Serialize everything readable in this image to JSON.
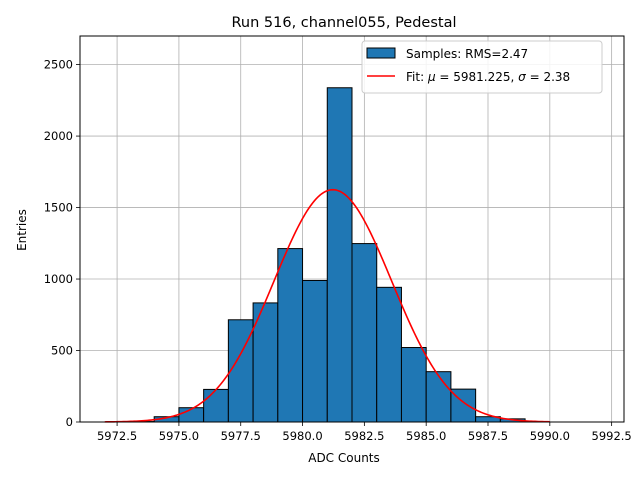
{
  "chart_data": {
    "type": "bar",
    "title": "Run 516, channel055, Pedestal",
    "xlabel": "ADC Counts",
    "ylabel": "Entries",
    "xlim": [
      5971.0,
      5993.0
    ],
    "ylim": [
      0,
      2700
    ],
    "grid": true,
    "legend_position": "top-right",
    "x_ticks": [
      {
        "value": 5972.5,
        "label": "5972.5"
      },
      {
        "value": 5975.0,
        "label": "5975.0"
      },
      {
        "value": 5977.5,
        "label": "5977.5"
      },
      {
        "value": 5980.0,
        "label": "5980.0"
      },
      {
        "value": 5982.5,
        "label": "5982.5"
      },
      {
        "value": 5985.0,
        "label": "5985.0"
      },
      {
        "value": 5987.5,
        "label": "5987.5"
      },
      {
        "value": 5990.0,
        "label": "5990.0"
      },
      {
        "value": 5992.5,
        "label": "5992.5"
      }
    ],
    "y_ticks": [
      {
        "value": 0,
        "label": "0"
      },
      {
        "value": 500,
        "label": "500"
      },
      {
        "value": 1000,
        "label": "1000"
      },
      {
        "value": 1500,
        "label": "1500"
      },
      {
        "value": 2000,
        "label": "2000"
      },
      {
        "value": 2500,
        "label": "2500"
      }
    ],
    "histogram": {
      "name": "Samples: RMS=2.47",
      "color": "#1f77b4",
      "edge_color": "#000000",
      "bin_edges": [
        5973.0,
        5974.0,
        5975.0,
        5976.0,
        5977.0,
        5978.0,
        5979.0,
        5980.0,
        5981.0,
        5982.0,
        5983.0,
        5984.0,
        5985.0,
        5986.0,
        5987.0,
        5988.0,
        5989.0,
        5990.0,
        5991.0,
        5992.0
      ],
      "counts": [
        3,
        37,
        100,
        228,
        715,
        833,
        1213,
        990,
        2338,
        1248,
        942,
        521,
        352,
        230,
        37,
        22,
        0,
        0,
        0
      ]
    },
    "fit": {
      "name": "Fit: μ = 5981.225, σ = 2.38",
      "label_parts": {
        "prefix": "Fit: ",
        "mu_symbol": "μ",
        "mu_text": " = 5981.225, ",
        "sigma_symbol": "σ",
        "sigma_text": " = 2.38"
      },
      "color": "#ff0000",
      "mu": 5981.225,
      "sigma": 2.38,
      "amplitude": 1625,
      "x_range": [
        5972.0,
        5990.0
      ]
    }
  }
}
